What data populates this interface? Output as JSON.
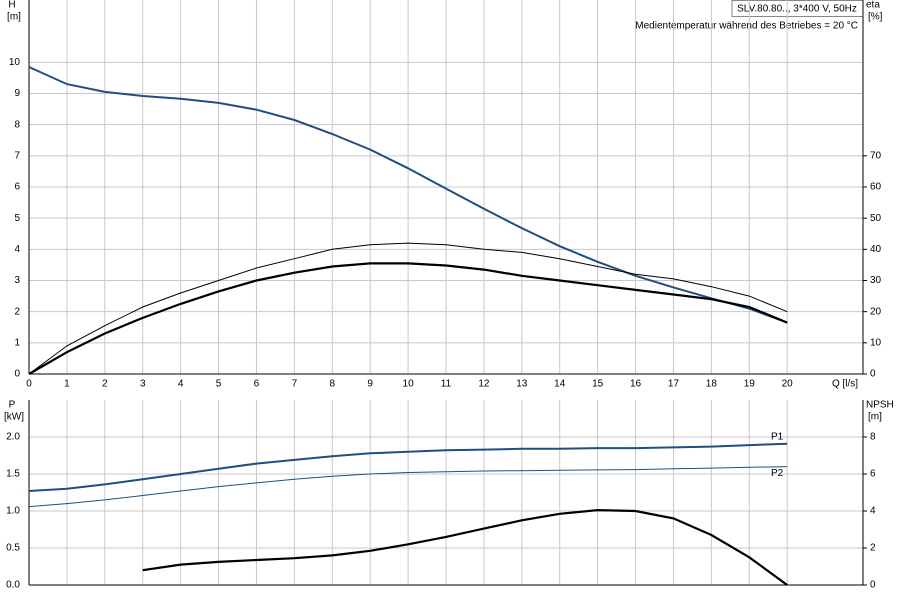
{
  "chart_data": [
    {
      "type": "line",
      "title": "SLV.80.80.., 3*400 V, 50Hz",
      "subtitle": "Medientemperatur während des Betriebes = 20 °C",
      "y_label": "H",
      "y_unit": "[m]",
      "y2_label": "eta",
      "y2_unit": "[%]",
      "x_label": "Q [l/s]",
      "x": [
        0,
        1,
        2,
        3,
        4,
        5,
        6,
        7,
        8,
        9,
        10,
        11,
        12,
        13,
        14,
        15,
        16,
        17,
        18,
        19,
        20
      ],
      "xlim": [
        0,
        22
      ],
      "xticks": [
        0,
        1,
        2,
        3,
        4,
        5,
        6,
        7,
        8,
        9,
        10,
        11,
        12,
        13,
        14,
        15,
        16,
        17,
        18,
        19,
        20
      ],
      "ylim": [
        0,
        12
      ],
      "yticks": [
        0,
        1,
        2,
        3,
        4,
        5,
        6,
        7,
        8,
        9,
        10
      ],
      "y2lim": [
        0,
        120
      ],
      "y2ticks": [
        0,
        10,
        20,
        30,
        40,
        50,
        60,
        70
      ],
      "grid": true,
      "series": [
        {
          "color": "#1f4f7f",
          "line_width": 2,
          "values": [
            9.85,
            9.3,
            9.05,
            8.92,
            8.83,
            8.7,
            8.48,
            8.15,
            7.7,
            7.2,
            6.6,
            5.95,
            5.3,
            4.68,
            4.1,
            3.6,
            3.15,
            2.78,
            2.43,
            2.1,
            1.65
          ]
        },
        {
          "color": "#000000",
          "line_width": 1,
          "axis": "y2",
          "values": [
            0,
            9,
            15.5,
            21.5,
            26,
            30,
            34,
            37,
            40,
            41.5,
            42,
            41.5,
            40,
            39,
            37,
            34.5,
            32,
            30.5,
            28,
            25,
            20
          ]
        },
        {
          "color": "#000000",
          "line_width": 2.2,
          "axis": "y2",
          "values": [
            0,
            7,
            13,
            18,
            22.5,
            26.5,
            30,
            32.5,
            34.5,
            35.5,
            35.5,
            34.8,
            33.5,
            31.5,
            30,
            28.5,
            27,
            25.5,
            24,
            21.5,
            16.5
          ]
        }
      ]
    },
    {
      "type": "line",
      "y_label": "P",
      "y_unit": "[kW]",
      "y2_label": "NPSH",
      "y2_unit": "[m]",
      "x": [
        0,
        1,
        2,
        3,
        4,
        5,
        6,
        7,
        8,
        9,
        10,
        11,
        12,
        13,
        14,
        15,
        16,
        17,
        18,
        19,
        20
      ],
      "xlim": [
        0,
        22
      ],
      "xticks": [
        0,
        1,
        2,
        3,
        4,
        5,
        6,
        7,
        8,
        9,
        10,
        11,
        12,
        13,
        14,
        15,
        16,
        17,
        18,
        19,
        20
      ],
      "ylim": [
        0,
        2.5
      ],
      "yticks": [
        {
          "value": 0,
          "label": "0.0"
        },
        0.5,
        {
          "value": 1,
          "label": "1.0"
        },
        1.5,
        {
          "value": 2,
          "label": "2.0"
        }
      ],
      "y2lim": [
        0,
        10
      ],
      "y2ticks": [
        0,
        2,
        4,
        6,
        8
      ],
      "grid": true,
      "series": [
        {
          "name": "P1",
          "color": "#1f4f7f",
          "line_width": 2,
          "values": [
            1.27,
            1.3,
            1.36,
            1.43,
            1.5,
            1.57,
            1.64,
            1.69,
            1.74,
            1.78,
            1.8,
            1.82,
            1.83,
            1.84,
            1.84,
            1.85,
            1.85,
            1.86,
            1.87,
            1.89,
            1.91
          ]
        },
        {
          "name": "P2",
          "color": "#1f4f7f",
          "line_width": 1,
          "values": [
            1.06,
            1.1,
            1.15,
            1.21,
            1.27,
            1.33,
            1.38,
            1.43,
            1.47,
            1.5,
            1.52,
            1.53,
            1.54,
            1.545,
            1.55,
            1.555,
            1.56,
            1.57,
            1.58,
            1.59,
            1.6
          ]
        },
        {
          "color": "#000000",
          "line_width": 2.2,
          "axis": "y2",
          "values": [
            null,
            null,
            null,
            0.8,
            1.1,
            1.25,
            1.35,
            1.45,
            1.6,
            1.85,
            2.2,
            2.6,
            3.05,
            3.5,
            3.85,
            4.05,
            4.0,
            3.6,
            2.7,
            1.5,
            0
          ]
        }
      ]
    }
  ]
}
